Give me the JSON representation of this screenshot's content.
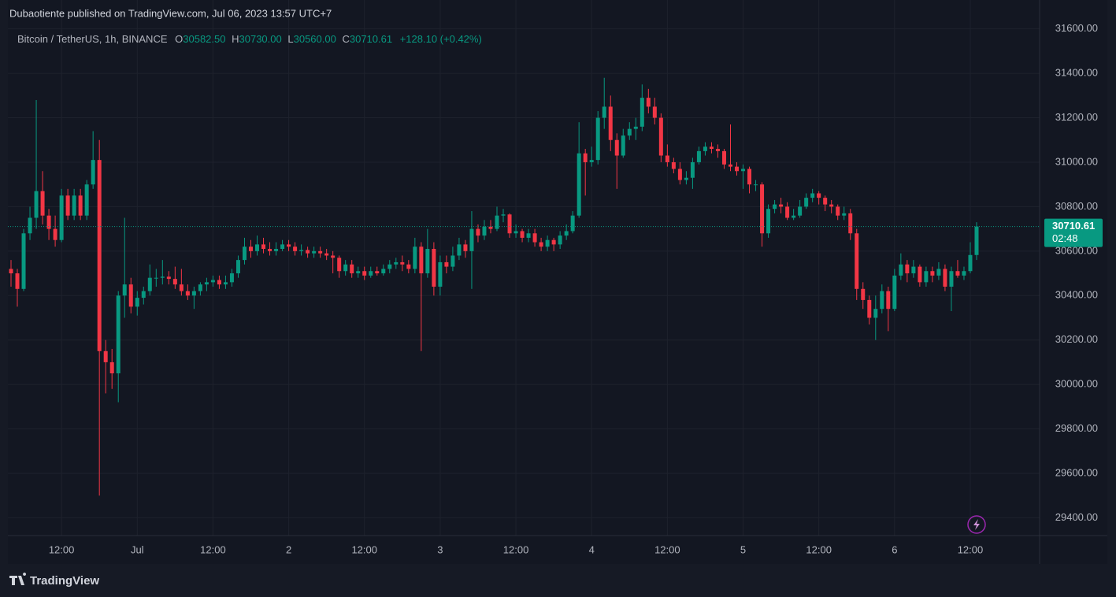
{
  "header": {
    "published": "Dubaotiente published on TradingView.com, Jul 06, 2023 13:57 UTC+7"
  },
  "footer": {
    "brand": "TradingView"
  },
  "chart_data": {
    "type": "candlestick",
    "legend": {
      "symbol": "Bitcoin / TetherUS, 1h, BINANCE",
      "o_label": "O",
      "o": "30582.50",
      "h_label": "H",
      "h": "30730.00",
      "l_label": "L",
      "l": "30560.00",
      "c_label": "C",
      "c": "30710.61",
      "change": "+128.10 (+0.42%)"
    },
    "countdown": "02:48",
    "up_color": "#089981",
    "down_color": "#f23645",
    "ylim": [
      29320,
      31730
    ],
    "yticks": [
      {
        "value": 29400,
        "label": "29400.00"
      },
      {
        "value": 29600,
        "label": "29600.00"
      },
      {
        "value": 29800,
        "label": "29800.00"
      },
      {
        "value": 30000,
        "label": "30000.00"
      },
      {
        "value": 30200,
        "label": "30200.00"
      },
      {
        "value": 30400,
        "label": "30400.00"
      },
      {
        "value": 30600,
        "label": "30600.00"
      },
      {
        "value": 30800,
        "label": "30800.00"
      },
      {
        "value": 31000,
        "label": "31000.00"
      },
      {
        "value": 31200,
        "label": "31200.00"
      },
      {
        "value": 31400,
        "label": "31400.00"
      },
      {
        "value": 31600,
        "label": "31600.00"
      }
    ],
    "xticks": [
      {
        "value": 8,
        "label": "12:00"
      },
      {
        "value": 20,
        "label": "Jul"
      },
      {
        "value": 32,
        "label": "12:00"
      },
      {
        "value": 44,
        "label": "2"
      },
      {
        "value": 56,
        "label": "12:00"
      },
      {
        "value": 68,
        "label": "3"
      },
      {
        "value": 80,
        "label": "12:00"
      },
      {
        "value": 92,
        "label": "4"
      },
      {
        "value": 104,
        "label": "12:00"
      },
      {
        "value": 116,
        "label": "5"
      },
      {
        "value": 128,
        "label": "12:00"
      },
      {
        "value": 140,
        "label": "6"
      },
      {
        "value": 152,
        "label": "12:00"
      }
    ],
    "grid": true,
    "ohlc": [
      [
        30520,
        30560,
        30440,
        30500
      ],
      [
        30500,
        30520,
        30350,
        30430
      ],
      [
        30430,
        30700,
        30420,
        30680
      ],
      [
        30680,
        30800,
        30650,
        30750
      ],
      [
        30750,
        31280,
        30700,
        30870
      ],
      [
        30870,
        30960,
        30720,
        30760
      ],
      [
        30760,
        30790,
        30650,
        30700
      ],
      [
        30700,
        30760,
        30620,
        30650
      ],
      [
        30650,
        30880,
        30640,
        30850
      ],
      [
        30850,
        30880,
        30740,
        30760
      ],
      [
        30760,
        30880,
        30740,
        30850
      ],
      [
        30850,
        30880,
        30740,
        30760
      ],
      [
        30760,
        30920,
        30740,
        30900
      ],
      [
        30900,
        31140,
        30880,
        31010
      ],
      [
        31010,
        31100,
        29500,
        30150
      ],
      [
        30150,
        30200,
        29960,
        30100
      ],
      [
        30100,
        30160,
        29980,
        30050
      ],
      [
        30050,
        30420,
        29920,
        30400
      ],
      [
        30400,
        30750,
        30300,
        30450
      ],
      [
        30450,
        30480,
        30320,
        30350
      ],
      [
        30350,
        30420,
        30310,
        30390
      ],
      [
        30390,
        30440,
        30360,
        30420
      ],
      [
        30420,
        30540,
        30400,
        30480
      ],
      [
        30480,
        30520,
        30440,
        30480
      ],
      [
        30480,
        30560,
        30450,
        30485
      ],
      [
        30485,
        30510,
        30450,
        30475
      ],
      [
        30475,
        30530,
        30430,
        30450
      ],
      [
        30450,
        30520,
        30400,
        30420
      ],
      [
        30420,
        30450,
        30380,
        30400
      ],
      [
        30400,
        30440,
        30340,
        30420
      ],
      [
        30420,
        30460,
        30400,
        30450
      ],
      [
        30450,
        30480,
        30420,
        30460
      ],
      [
        30460,
        30490,
        30440,
        30470
      ],
      [
        30470,
        30490,
        30430,
        30450
      ],
      [
        30450,
        30490,
        30430,
        30460
      ],
      [
        30460,
        30520,
        30440,
        30500
      ],
      [
        30500,
        30580,
        30480,
        30560
      ],
      [
        30560,
        30660,
        30540,
        30620
      ],
      [
        30620,
        30650,
        30570,
        30600
      ],
      [
        30600,
        30670,
        30580,
        30630
      ],
      [
        30630,
        30660,
        30590,
        30610
      ],
      [
        30610,
        30640,
        30580,
        30600
      ],
      [
        30600,
        30640,
        30580,
        30610
      ],
      [
        30610,
        30650,
        30600,
        30630
      ],
      [
        30630,
        30650,
        30600,
        30620
      ],
      [
        30620,
        30640,
        30580,
        30600
      ],
      [
        30600,
        30630,
        30580,
        30605
      ],
      [
        30605,
        30620,
        30570,
        30590
      ],
      [
        30590,
        30620,
        30570,
        30600
      ],
      [
        30600,
        30620,
        30570,
        30590
      ],
      [
        30590,
        30610,
        30560,
        30580
      ],
      [
        30580,
        30600,
        30500,
        30570
      ],
      [
        30570,
        30580,
        30480,
        30510
      ],
      [
        30510,
        30560,
        30490,
        30540
      ],
      [
        30540,
        30560,
        30480,
        30500
      ],
      [
        30500,
        30530,
        30480,
        30510
      ],
      [
        30510,
        30530,
        30470,
        30490
      ],
      [
        30490,
        30530,
        30480,
        30510
      ],
      [
        30510,
        30530,
        30490,
        30500
      ],
      [
        30500,
        30540,
        30490,
        30520
      ],
      [
        30520,
        30560,
        30500,
        30540
      ],
      [
        30540,
        30570,
        30520,
        30550
      ],
      [
        30550,
        30580,
        30510,
        30540
      ],
      [
        30540,
        30560,
        30500,
        30520
      ],
      [
        30520,
        30660,
        30500,
        30620
      ],
      [
        30620,
        30640,
        30150,
        30500
      ],
      [
        30500,
        30700,
        30480,
        30610
      ],
      [
        30610,
        30640,
        30400,
        30440
      ],
      [
        30440,
        30580,
        30400,
        30550
      ],
      [
        30550,
        30580,
        30500,
        30530
      ],
      [
        30530,
        30620,
        30510,
        30580
      ],
      [
        30580,
        30660,
        30560,
        30630
      ],
      [
        30630,
        30650,
        30570,
        30600
      ],
      [
        30600,
        30780,
        30430,
        30700
      ],
      [
        30700,
        30720,
        30640,
        30670
      ],
      [
        30670,
        30740,
        30650,
        30710
      ],
      [
        30710,
        30740,
        30680,
        30700
      ],
      [
        30700,
        30800,
        30690,
        30760
      ],
      [
        30760,
        30790,
        30730,
        30765
      ],
      [
        30765,
        30770,
        30660,
        30680
      ],
      [
        30680,
        30720,
        30660,
        30690
      ],
      [
        30690,
        30700,
        30640,
        30660
      ],
      [
        30660,
        30700,
        30640,
        30680
      ],
      [
        30680,
        30700,
        30620,
        30640
      ],
      [
        30640,
        30660,
        30600,
        30620
      ],
      [
        30620,
        30670,
        30600,
        30650
      ],
      [
        30650,
        30660,
        30600,
        30630
      ],
      [
        30630,
        30690,
        30610,
        30670
      ],
      [
        30670,
        30720,
        30650,
        30690
      ],
      [
        30690,
        30780,
        30680,
        30760
      ],
      [
        30760,
        31180,
        30750,
        31040
      ],
      [
        31040,
        31060,
        30850,
        31000
      ],
      [
        31000,
        31070,
        30980,
        31010
      ],
      [
        31010,
        31230,
        30990,
        31200
      ],
      [
        31200,
        31380,
        31150,
        31250
      ],
      [
        31250,
        31300,
        31050,
        31100
      ],
      [
        31100,
        31130,
        30880,
        31030
      ],
      [
        31030,
        31150,
        31020,
        31120
      ],
      [
        31120,
        31180,
        31100,
        31150
      ],
      [
        31150,
        31200,
        31100,
        31160
      ],
      [
        31160,
        31350,
        31140,
        31290
      ],
      [
        31290,
        31330,
        31220,
        31250
      ],
      [
        31250,
        31290,
        31170,
        31200
      ],
      [
        31200,
        31220,
        31000,
        31030
      ],
      [
        31030,
        31080,
        30980,
        31000
      ],
      [
        31000,
        31020,
        30950,
        30970
      ],
      [
        30970,
        31000,
        30900,
        30920
      ],
      [
        30920,
        30960,
        30900,
        30930
      ],
      [
        30930,
        31020,
        30880,
        31000
      ],
      [
        31000,
        31070,
        30990,
        31050
      ],
      [
        31050,
        31090,
        31030,
        31070
      ],
      [
        31070,
        31090,
        31040,
        31060
      ],
      [
        31060,
        31080,
        31020,
        31050
      ],
      [
        31050,
        31060,
        30970,
        30990
      ],
      [
        30990,
        31170,
        30960,
        30980
      ],
      [
        30980,
        31000,
        30940,
        30960
      ],
      [
        30960,
        30990,
        30880,
        30970
      ],
      [
        30970,
        30980,
        30860,
        30900
      ],
      [
        30900,
        30920,
        30870,
        30900
      ],
      [
        30900,
        30910,
        30620,
        30680
      ],
      [
        30680,
        30810,
        30660,
        30790
      ],
      [
        30790,
        30830,
        30770,
        30810
      ],
      [
        30810,
        30840,
        30770,
        30800
      ],
      [
        30800,
        30820,
        30740,
        30750
      ],
      [
        30750,
        30790,
        30740,
        30760
      ],
      [
        30760,
        30830,
        30750,
        30800
      ],
      [
        30800,
        30860,
        30790,
        30840
      ],
      [
        30840,
        30880,
        30820,
        30860
      ],
      [
        30860,
        30870,
        30810,
        30840
      ],
      [
        30840,
        30850,
        30780,
        30810
      ],
      [
        30810,
        30830,
        30770,
        30800
      ],
      [
        30800,
        30810,
        30740,
        30760
      ],
      [
        30760,
        30800,
        30740,
        30770
      ],
      [
        30770,
        30790,
        30650,
        30680
      ],
      [
        30680,
        30700,
        30380,
        30430
      ],
      [
        30430,
        30460,
        30340,
        30380
      ],
      [
        30380,
        30400,
        30270,
        30300
      ],
      [
        30300,
        30400,
        30200,
        30340
      ],
      [
        30340,
        30450,
        30320,
        30420
      ],
      [
        30420,
        30440,
        30240,
        30340
      ],
      [
        30340,
        30520,
        30330,
        30490
      ],
      [
        30490,
        30590,
        30470,
        30540
      ],
      [
        30540,
        30560,
        30460,
        30500
      ],
      [
        30500,
        30560,
        30480,
        30530
      ],
      [
        30530,
        30540,
        30440,
        30460
      ],
      [
        30460,
        30530,
        30440,
        30510
      ],
      [
        30510,
        30530,
        30460,
        30490
      ],
      [
        30490,
        30550,
        30470,
        30520
      ],
      [
        30520,
        30540,
        30420,
        30440
      ],
      [
        30440,
        30530,
        30330,
        30510
      ],
      [
        30510,
        30560,
        30480,
        30490
      ],
      [
        30490,
        30530,
        30470,
        30510
      ],
      [
        30510,
        30640,
        30500,
        30582.5
      ],
      [
        30582.5,
        30730,
        30560,
        30710.61
      ]
    ]
  }
}
